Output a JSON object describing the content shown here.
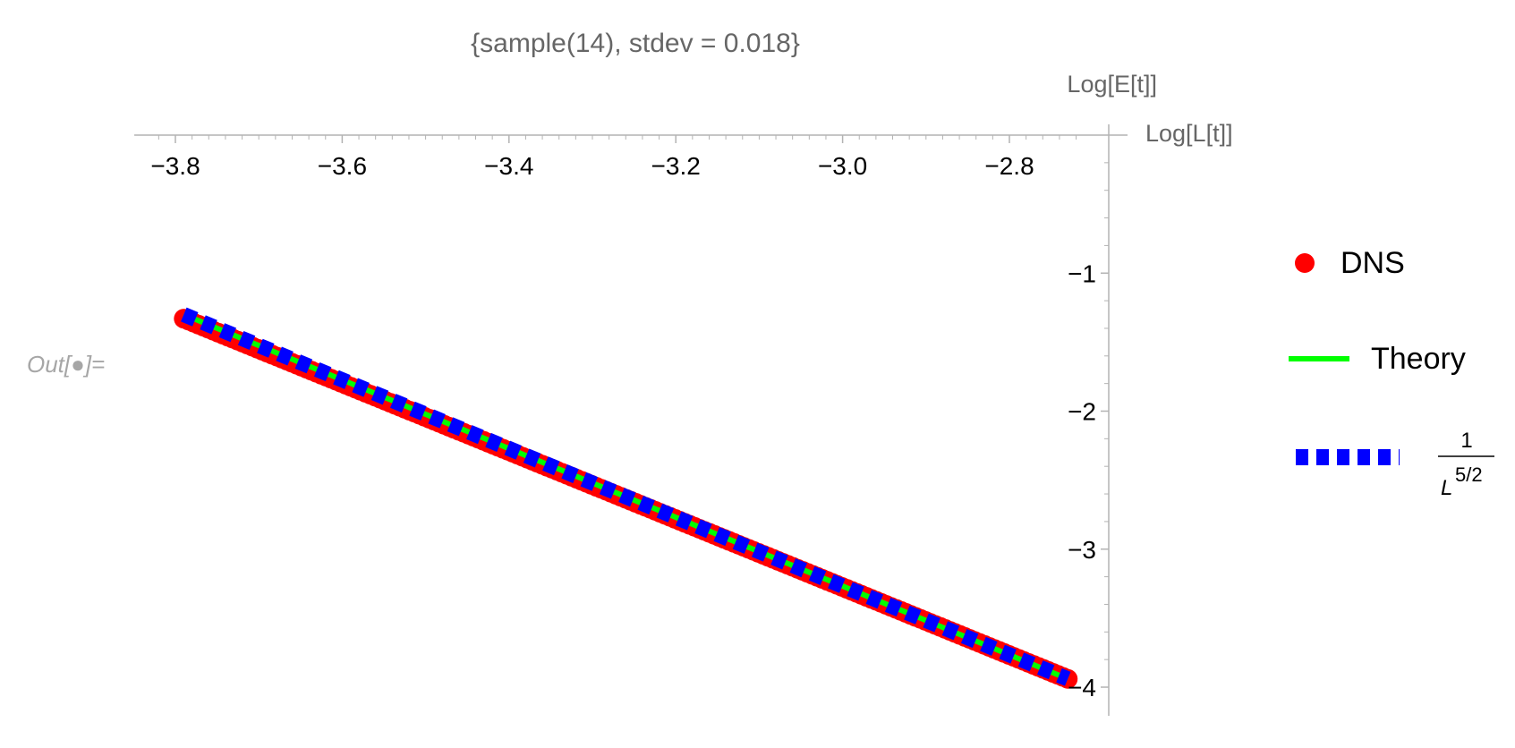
{
  "cell": {
    "out_label": "Out[●]="
  },
  "chart_data": {
    "type": "line",
    "title": "{sample(14), stdev = 0.018}",
    "xlabel": "Log[L[t]]",
    "ylabel": "Log[E[t]]",
    "xlim": [
      -3.83,
      -2.72
    ],
    "ylim": [
      -4.0,
      0.0
    ],
    "x_ticks": [
      -3.8,
      -3.6,
      -3.4,
      -3.2,
      -3.0,
      -2.8
    ],
    "x_tick_labels": [
      "−3.8",
      "−3.6",
      "−3.4",
      "−3.2",
      "−3.0",
      "−2.8"
    ],
    "y_ticks": [
      -1,
      -2,
      -3,
      -4
    ],
    "y_tick_labels": [
      "−1",
      "−2",
      "−3",
      "−4"
    ],
    "axes_origin": "top-right",
    "grid": false,
    "legend_position": "right",
    "series": [
      {
        "name": "DNS",
        "style": "points",
        "color": "#ff0000",
        "x": [
          -3.79,
          -2.73
        ],
        "y": [
          -1.33,
          -3.94
        ]
      },
      {
        "name": "Theory",
        "style": "line",
        "color": "#00ff00",
        "x": [
          -3.79,
          -2.73
        ],
        "y": [
          -1.3,
          -3.94
        ]
      },
      {
        "name_numerator": "1",
        "name_base": "L",
        "name_exponent": "5/2",
        "style": "dashed",
        "color": "#0000ff",
        "x": [
          -3.79,
          -2.73
        ],
        "y": [
          -1.3,
          -3.94
        ]
      }
    ]
  }
}
